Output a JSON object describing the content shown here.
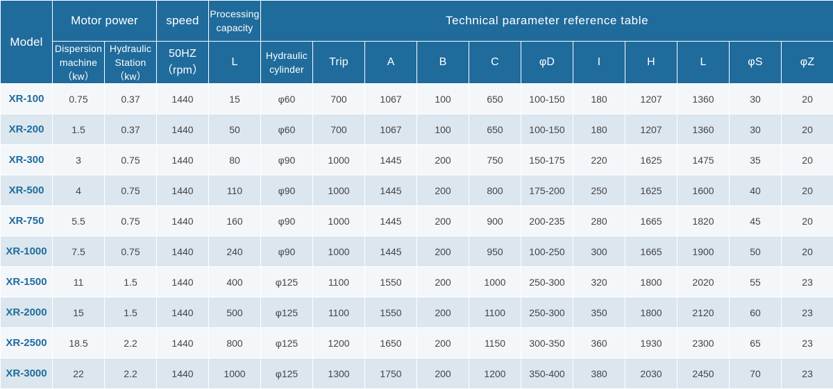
{
  "header": {
    "model": "Model",
    "motor_power": "Motor power",
    "speed": "speed",
    "processing_capacity_line1": "Processing",
    "processing_capacity_line2": "capacity",
    "technical_reference": "Technical parameter reference table",
    "dispersion_line1": "Dispersion",
    "dispersion_line2": "machine",
    "dispersion_unit": "（kw）",
    "hydraulic_station_line1": "Hydraulic",
    "hydraulic_station_line2": "Station",
    "hydraulic_station_unit": "（kw）",
    "speed_hz": "50HZ",
    "speed_unit": "（rpm）",
    "capacity_unit": "L",
    "hydraulic_cylinder_line1": "Hydraulic",
    "hydraulic_cylinder_line2": "cylinder",
    "trip": "Trip",
    "a": "A",
    "b": "B",
    "c": "C",
    "phi_d": "φD",
    "i": "I",
    "h": "H",
    "l": "L",
    "phi_s": "φS",
    "phi_z": "φZ"
  },
  "rows": [
    [
      "XR-100",
      "0.75",
      "0.37",
      "1440",
      "15",
      "φ60",
      "700",
      "1067",
      "100",
      "650",
      "100-150",
      "180",
      "1207",
      "1360",
      "30",
      "20"
    ],
    [
      "XR-200",
      "1.5",
      "0.37",
      "1440",
      "50",
      "φ60",
      "700",
      "1067",
      "100",
      "650",
      "100-150",
      "180",
      "1207",
      "1360",
      "30",
      "20"
    ],
    [
      "XR-300",
      "3",
      "0.75",
      "1440",
      "80",
      "φ90",
      "1000",
      "1445",
      "200",
      "750",
      "150-175",
      "220",
      "1625",
      "1475",
      "35",
      "20"
    ],
    [
      "XR-500",
      "4",
      "0.75",
      "1440",
      "110",
      "φ90",
      "1000",
      "1445",
      "200",
      "800",
      "175-200",
      "250",
      "1625",
      "1600",
      "40",
      "20"
    ],
    [
      "XR-750",
      "5.5",
      "0.75",
      "1440",
      "160",
      "φ90",
      "1000",
      "1445",
      "200",
      "900",
      "200-235",
      "280",
      "1665",
      "1820",
      "45",
      "20"
    ],
    [
      "XR-1000",
      "7.5",
      "0.75",
      "1440",
      "240",
      "φ90",
      "1000",
      "1445",
      "200",
      "950",
      "100-250",
      "300",
      "1665",
      "1900",
      "50",
      "20"
    ],
    [
      "XR-1500",
      "11",
      "1.5",
      "1440",
      "400",
      "φ125",
      "1100",
      "1550",
      "200",
      "1000",
      "250-300",
      "320",
      "1800",
      "2020",
      "55",
      "23"
    ],
    [
      "XR-2000",
      "15",
      "1.5",
      "1440",
      "500",
      "φ125",
      "1100",
      "1550",
      "200",
      "1100",
      "250-300",
      "350",
      "1800",
      "2120",
      "60",
      "23"
    ],
    [
      "XR-2500",
      "18.5",
      "2.2",
      "1440",
      "800",
      "φ125",
      "1200",
      "1650",
      "200",
      "1150",
      "300-350",
      "360",
      "1930",
      "2300",
      "65",
      "23"
    ],
    [
      "XR-3000",
      "22",
      "2.2",
      "1440",
      "1000",
      "φ125",
      "1300",
      "1750",
      "200",
      "1200",
      "350-400",
      "380",
      "2030",
      "2450",
      "70",
      "23"
    ]
  ],
  "colors": {
    "header_bg": "#1f6b9c",
    "row_light": "#f4f7fa",
    "row_dark": "#dbe6ef",
    "model_text": "#1f6b9c"
  }
}
